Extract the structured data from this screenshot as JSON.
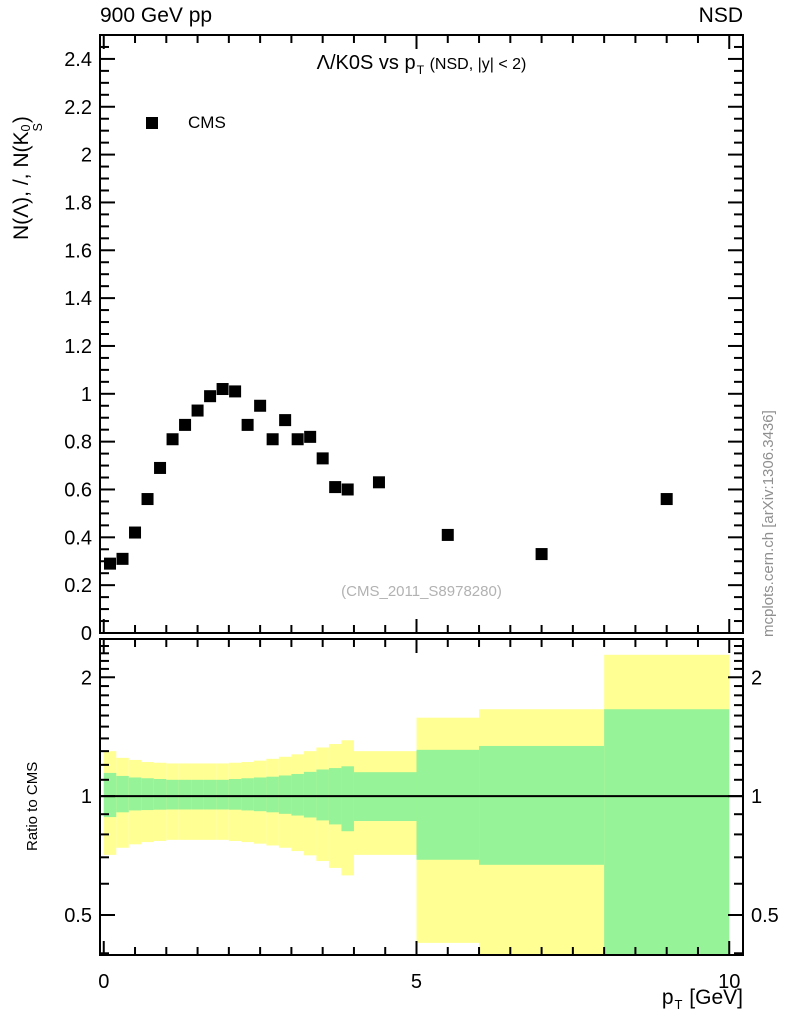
{
  "header": {
    "left": "900 GeV pp",
    "right": "NSD"
  },
  "watermarks": {
    "side": "mcplots.cern.ch [arXiv:1306.3436]",
    "inplot": "(CMS_2011_S8978280)"
  },
  "chart_data": {
    "type": "scatter",
    "title": {
      "main": "Λ/K0S vs p",
      "sub": "T",
      "suffix": " (NSD, |y| < 2)"
    },
    "xlabel": {
      "main": "p",
      "sub": "T",
      "suffix": " [GeV]"
    },
    "ylabel": {
      "prefix": "N(Λ), /, N(K",
      "sup": "0",
      "sub": "S",
      "suffix": ")"
    },
    "ratio_ylabel": "Ratio to CMS",
    "x_axis": {
      "min": 0,
      "max": 10,
      "labeled_ticks": [
        0,
        5,
        10
      ],
      "minor_step": 0.5
    },
    "y_axis": {
      "min": 0,
      "max": 2.5,
      "label_step": 0.2,
      "minor_step": 0.05
    },
    "ratio_axis": {
      "min": 0.4,
      "max": 2.5,
      "scale": "log",
      "labeled_ticks": [
        0.5,
        1,
        2
      ],
      "minor_step": 0.1
    },
    "legend": {
      "label": "CMS",
      "marker": "filled-square",
      "color": "#000000"
    },
    "series": [
      {
        "name": "CMS",
        "marker": "square",
        "color": "#000000",
        "points": [
          [
            0.1,
            0.29
          ],
          [
            0.3,
            0.31
          ],
          [
            0.5,
            0.42
          ],
          [
            0.7,
            0.56
          ],
          [
            0.9,
            0.69
          ],
          [
            1.1,
            0.81
          ],
          [
            1.3,
            0.87
          ],
          [
            1.5,
            0.93
          ],
          [
            1.7,
            0.99
          ],
          [
            1.9,
            1.02
          ],
          [
            2.1,
            1.01
          ],
          [
            2.3,
            0.87
          ],
          [
            2.5,
            0.95
          ],
          [
            2.7,
            0.81
          ],
          [
            2.9,
            0.89
          ],
          [
            3.1,
            0.81
          ],
          [
            3.3,
            0.82
          ],
          [
            3.5,
            0.73
          ],
          [
            3.7,
            0.61
          ],
          [
            3.9,
            0.6
          ],
          [
            4.4,
            0.63
          ],
          [
            5.5,
            0.41
          ],
          [
            7.0,
            0.33
          ],
          [
            9.0,
            0.56
          ]
        ]
      }
    ],
    "ratio_bands": {
      "reference_line": 1,
      "colors": {
        "outer": "#ffff94",
        "inner": "#97f397"
      },
      "bins": [
        [
          0.0,
          0.2,
          0.71,
          1.3,
          0.885,
          1.145
        ],
        [
          0.2,
          0.4,
          0.74,
          1.25,
          0.91,
          1.125
        ],
        [
          0.4,
          0.6,
          0.755,
          1.235,
          0.92,
          1.115
        ],
        [
          0.6,
          0.8,
          0.765,
          1.22,
          0.922,
          1.11
        ],
        [
          0.8,
          1.0,
          0.77,
          1.215,
          0.924,
          1.105
        ],
        [
          1.0,
          1.2,
          0.775,
          1.21,
          0.925,
          1.1
        ],
        [
          1.2,
          1.4,
          0.775,
          1.21,
          0.925,
          1.1
        ],
        [
          1.4,
          1.6,
          0.775,
          1.21,
          0.925,
          1.1
        ],
        [
          1.6,
          1.8,
          0.775,
          1.21,
          0.925,
          1.1
        ],
        [
          1.8,
          2.0,
          0.775,
          1.21,
          0.925,
          1.1
        ],
        [
          2.0,
          2.2,
          0.77,
          1.215,
          0.924,
          1.105
        ],
        [
          2.2,
          2.4,
          0.765,
          1.22,
          0.92,
          1.11
        ],
        [
          2.4,
          2.6,
          0.758,
          1.23,
          0.916,
          1.115
        ],
        [
          2.6,
          2.8,
          0.75,
          1.243,
          0.91,
          1.12
        ],
        [
          2.8,
          3.0,
          0.74,
          1.258,
          0.902,
          1.128
        ],
        [
          3.0,
          3.2,
          0.726,
          1.276,
          0.893,
          1.138
        ],
        [
          3.2,
          3.4,
          0.708,
          1.3,
          0.883,
          1.152
        ],
        [
          3.4,
          3.6,
          0.685,
          1.328,
          0.868,
          1.168
        ],
        [
          3.6,
          3.8,
          0.658,
          1.355,
          0.848,
          1.178
        ],
        [
          3.8,
          4.0,
          0.63,
          1.385,
          0.815,
          1.19
        ],
        [
          4.0,
          5.0,
          0.71,
          1.3,
          0.865,
          1.15
        ],
        [
          5.0,
          6.0,
          0.425,
          1.58,
          0.69,
          1.31
        ],
        [
          6.0,
          8.0,
          0.36,
          1.66,
          0.67,
          1.34
        ],
        [
          8.0,
          10.0,
          0.36,
          2.28,
          0.36,
          1.66
        ]
      ]
    }
  }
}
